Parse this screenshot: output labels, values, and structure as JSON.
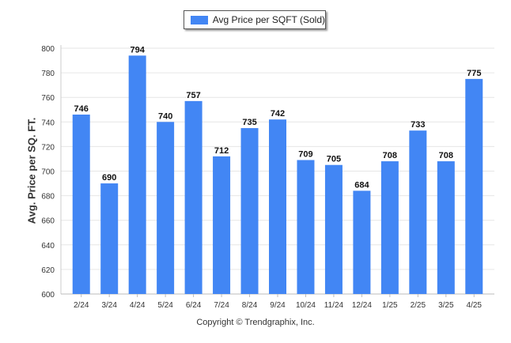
{
  "legend": {
    "label": "Avg Price per SQFT (Sold)"
  },
  "footer": {
    "copyright": "Copyright © Trendgraphix, Inc."
  },
  "chart_data": {
    "type": "bar",
    "categories": [
      "2/24",
      "3/24",
      "4/24",
      "5/24",
      "6/24",
      "7/24",
      "8/24",
      "9/24",
      "10/24",
      "11/24",
      "12/24",
      "1/25",
      "2/25",
      "3/25",
      "4/25"
    ],
    "series": [
      {
        "name": "Avg Price per SQFT (Sold)",
        "values": [
          746,
          690,
          794,
          740,
          757,
          712,
          735,
          742,
          709,
          705,
          684,
          708,
          733,
          708,
          775
        ]
      }
    ],
    "ylabel": "Avg. Price per SQ. FT.",
    "xlabel": "",
    "ylim": [
      600,
      800
    ],
    "yticks": [
      600,
      620,
      640,
      660,
      680,
      700,
      720,
      740,
      760,
      780,
      800
    ],
    "grid": true,
    "legend_position": "top-center",
    "bar_color": "#4286f4"
  }
}
